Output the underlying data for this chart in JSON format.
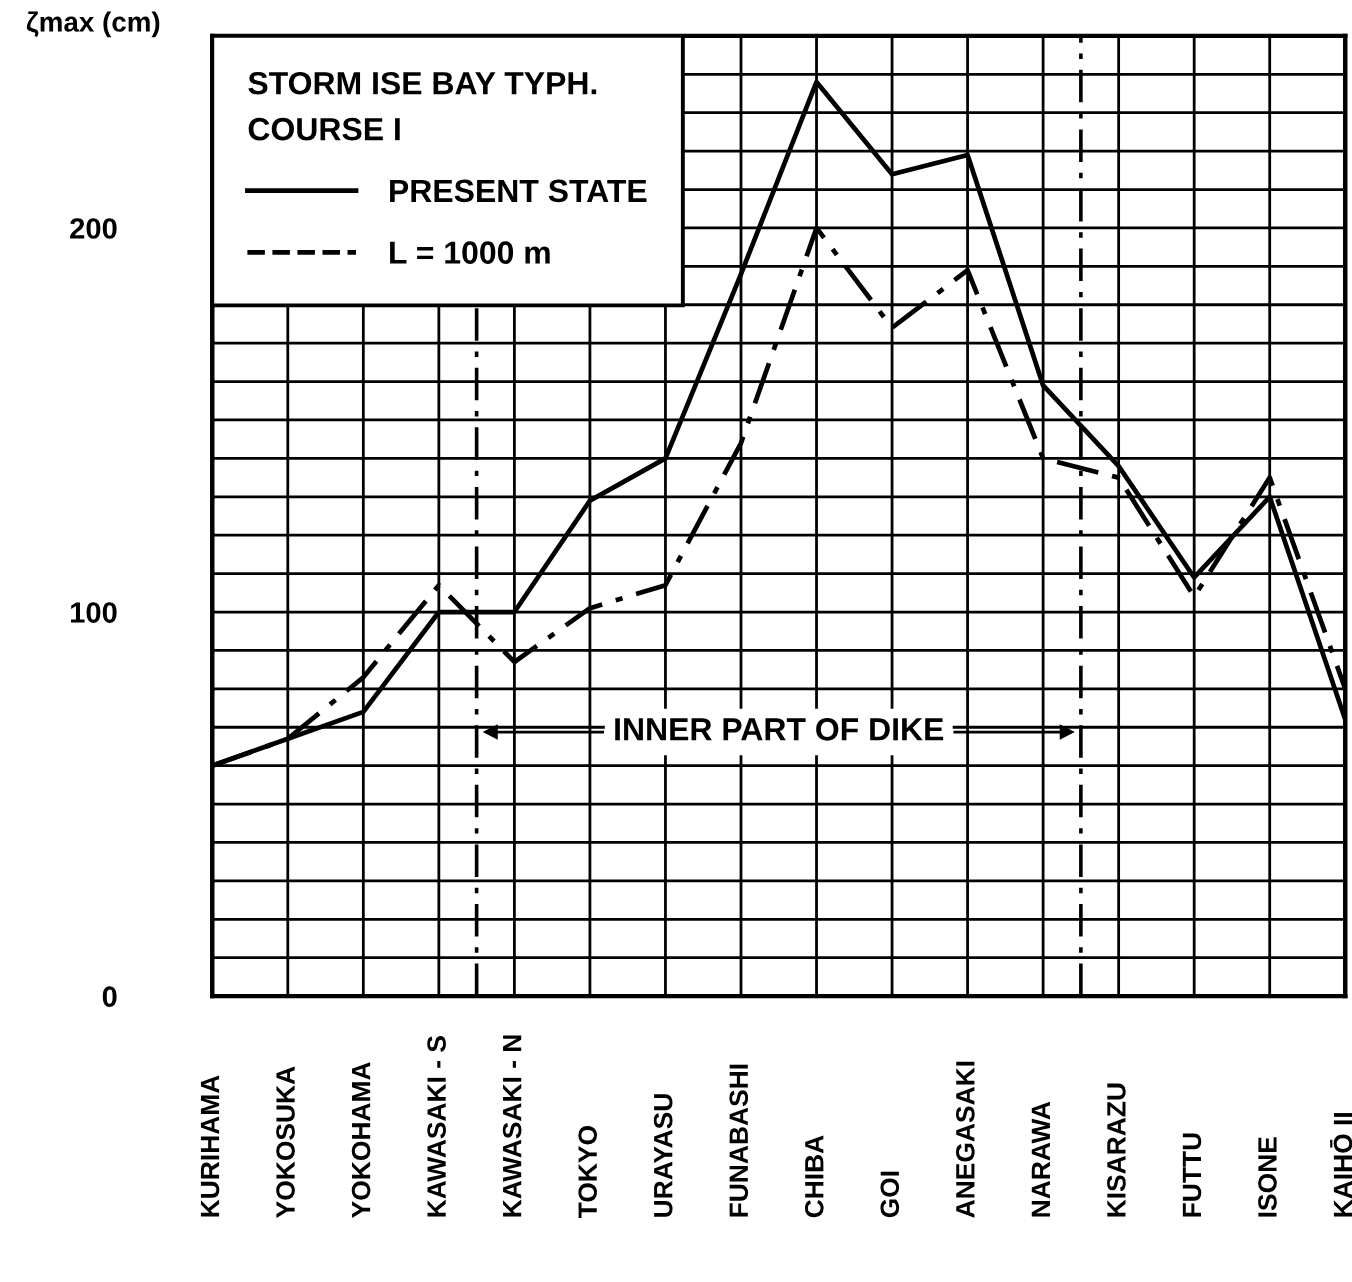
{
  "chart_data": {
    "type": "line",
    "categories": [
      "KURIHAMA",
      "YOKOSUKA",
      "YOKOHAMA",
      "KAWASAKI - S",
      "KAWASAKI - N",
      "TOKYO",
      "URAYASU",
      "FUNABASHI",
      "CHIBA",
      "GOI",
      "ANEGASAKI",
      "NARAWA",
      "KISARAZU",
      "FUTTU",
      "ISONE",
      "KAIHŌ II"
    ],
    "ylabel": "ζmax (cm)",
    "ylim": [
      0,
      250
    ],
    "yticks": [
      0,
      {
        "value": 10,
        "label": null
      },
      {
        "value": 20,
        "label": null
      },
      {
        "value": 30,
        "label": null
      },
      {
        "value": 40,
        "label": null
      },
      {
        "value": 50,
        "label": null
      },
      {
        "value": 60,
        "label": null
      },
      {
        "value": 70,
        "label": null
      },
      {
        "value": 80,
        "label": null
      },
      {
        "value": 90,
        "label": null
      },
      100,
      {
        "value": 110,
        "label": null
      },
      {
        "value": 120,
        "label": null
      },
      {
        "value": 130,
        "label": null
      },
      {
        "value": 140,
        "label": null
      },
      {
        "value": 150,
        "label": null
      },
      {
        "value": 160,
        "label": null
      },
      {
        "value": 170,
        "label": null
      },
      {
        "value": 180,
        "label": null
      },
      {
        "value": 190,
        "label": null
      },
      200,
      {
        "value": 210,
        "label": null
      },
      {
        "value": 220,
        "label": null
      },
      {
        "value": 230,
        "label": null
      },
      {
        "value": 240,
        "label": null
      }
    ],
    "grid": true,
    "legend": "top left",
    "legend_title": "STORM ISE BAY TYPH.\nCOURSE I",
    "marker": "none",
    "series": [
      {
        "name": "PRESENT STATE",
        "color": "#000000",
        "line_style": "solid",
        "values": [
          60,
          67,
          74,
          100,
          100,
          129,
          140,
          188,
          238,
          214,
          219,
          159,
          138,
          109,
          130,
          72
        ]
      },
      {
        "name": "L = 1000 m",
        "color": "#000000",
        "line_style": "dashdot",
        "values": [
          60,
          67,
          83,
          107,
          87,
          101,
          107,
          144,
          200,
          174,
          189,
          140,
          135,
          104,
          135,
          80
        ]
      }
    ],
    "annotations": [
      "INNER PART OF DIKE"
    ]
  }
}
